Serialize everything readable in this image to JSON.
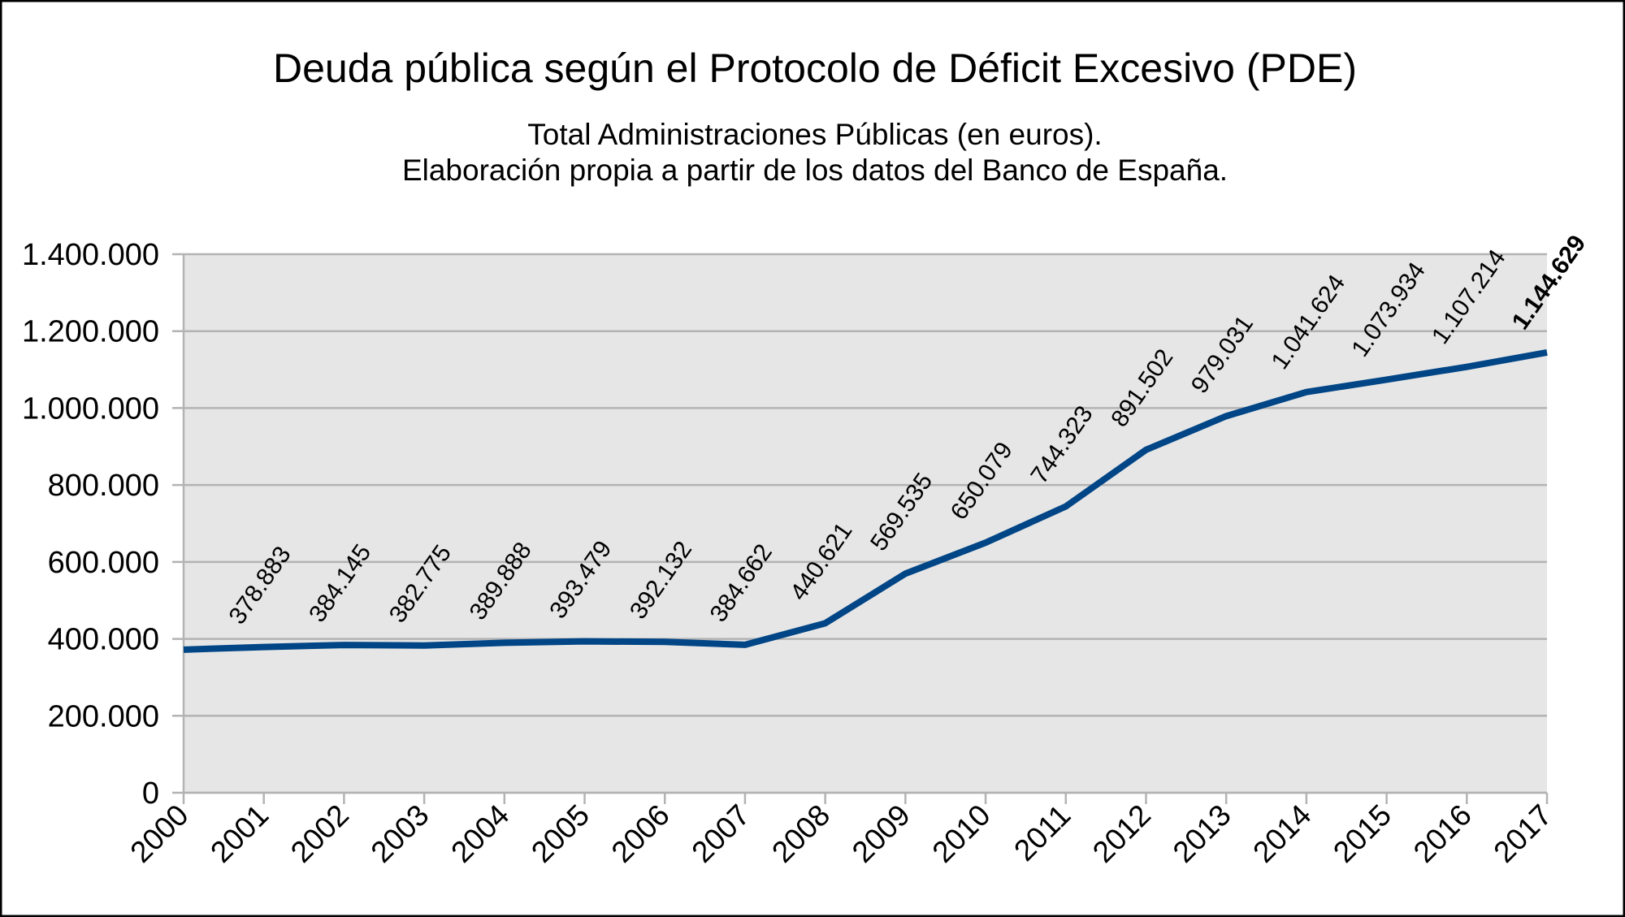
{
  "chart_data": {
    "type": "line",
    "title": "Deuda pública según el Protocolo de Déficit Excesivo (PDE)",
    "subtitle": [
      "Total Administraciones Públicas (en euros).",
      "Elaboración propia a partir de los datos del Banco de España."
    ],
    "categories": [
      "2000",
      "2001",
      "2002",
      "2003",
      "2004",
      "2005",
      "2006",
      "2007",
      "2008",
      "2009",
      "2010",
      "2011",
      "2012",
      "2013",
      "2014",
      "2015",
      "2016",
      "2017"
    ],
    "series": [
      {
        "name": "Deuda PDE",
        "color": "#004586",
        "values": [
          372000,
          378883,
          384145,
          382775,
          389888,
          393479,
          392132,
          384662,
          440621,
          569535,
          650079,
          744323,
          891502,
          979031,
          1041624,
          1073934,
          1107214,
          1144629
        ],
        "value_labels": [
          null,
          "378.883",
          "384.145",
          "382.775",
          "389.888",
          "393.479",
          "392.132",
          "384.662",
          "440.621",
          "569.535",
          "650.079",
          "744.323",
          "891.502",
          "979.031",
          "1.041.624",
          "1.073.934",
          "1.107.214",
          "1.144.629"
        ]
      }
    ],
    "ylim": [
      0,
      1400000
    ],
    "yticks": [
      0,
      {
        "value": 200000,
        "label": "200.000"
      },
      {
        "value": 400000,
        "label": "400.000"
      },
      {
        "value": 600000,
        "label": "600.000"
      },
      {
        "value": 800000,
        "label": "800.000"
      },
      {
        "value": 1000000,
        "label": "1.000.000"
      },
      {
        "value": 1200000,
        "label": "1.200.000"
      },
      {
        "value": 1400000,
        "label": "1.400.000"
      }
    ],
    "grid": true
  }
}
